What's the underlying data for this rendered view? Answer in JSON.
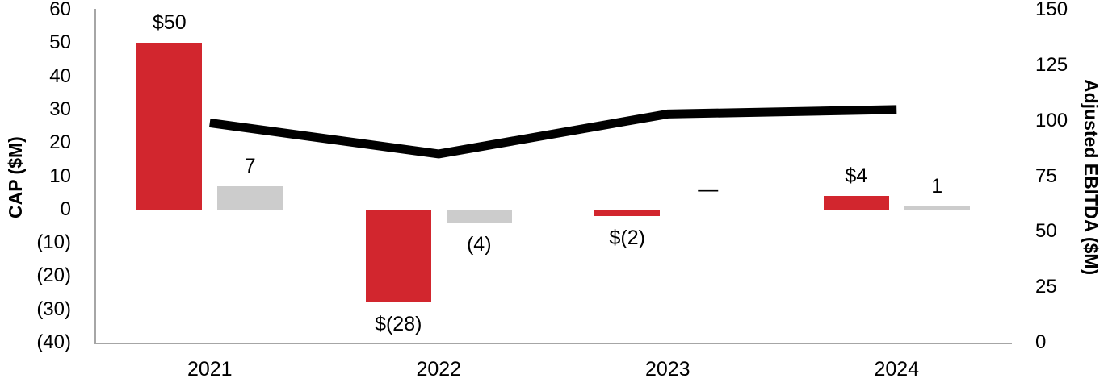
{
  "chart_data": {
    "type": "combo-bar-line",
    "title": "",
    "categories": [
      "2021",
      "2022",
      "2023",
      "2024"
    ],
    "left_axis": {
      "title": "CAP ($M)",
      "tick_labels": [
        "60",
        "50",
        "40",
        "30",
        "20",
        "10",
        "0",
        "(10)",
        "(20)",
        "(30)",
        "(40)"
      ],
      "tick_values": [
        60,
        50,
        40,
        30,
        20,
        10,
        0,
        -10,
        -20,
        -30,
        -40
      ],
      "range": [
        -40,
        60
      ],
      "grid": false
    },
    "right_axis": {
      "title": "Adjusted EBITDA ($M)",
      "tick_labels": [
        "150",
        "125",
        "100",
        "75",
        "50",
        "25",
        "0"
      ],
      "tick_values": [
        150,
        125,
        100,
        75,
        50,
        25,
        0
      ],
      "range": [
        0,
        150
      ],
      "grid": false
    },
    "series": [
      {
        "key": "red-bars",
        "type": "bar",
        "axis": "left",
        "color": "#d2262e",
        "values": [
          50,
          -28,
          -2,
          4
        ],
        "data_labels": [
          "$50",
          "$(28)",
          "$(2)",
          "$4"
        ]
      },
      {
        "key": "gray-bars",
        "type": "bar",
        "axis": "left",
        "color": "#cccccc",
        "values": [
          7,
          -4,
          0,
          1
        ],
        "data_labels": [
          "7",
          "(4)",
          "—",
          "1"
        ]
      },
      {
        "key": "ebitda-line",
        "type": "line",
        "axis": "right",
        "color": "#000000",
        "estimated": true,
        "values": [
          99,
          85,
          103,
          105
        ],
        "data_labels": [
          "",
          "",
          "",
          ""
        ]
      }
    ],
    "legend": "none",
    "colors": {
      "bar_red": "#d2262e",
      "bar_gray": "#cccccc",
      "line_black": "#000000",
      "axis_line": "#a6a6a6",
      "text": "#000000",
      "background": "#ffffff"
    }
  }
}
